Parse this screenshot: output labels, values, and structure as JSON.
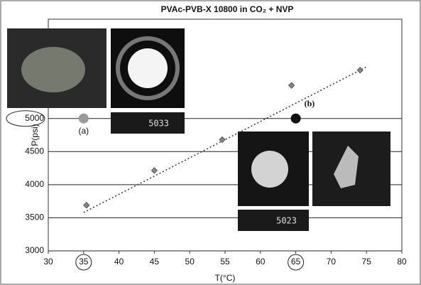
{
  "chart_data": {
    "type": "scatter",
    "title": "PVAc-PVB-X 10800 in CO₂ + NVP",
    "x_label": "T(°C)",
    "y_label": "P(psi)",
    "xlim": [
      30,
      80
    ],
    "xticks": [
      30,
      35,
      40,
      45,
      50,
      55,
      60,
      65,
      70,
      75,
      80
    ],
    "ylim": [
      3000,
      6500
    ],
    "yticks": [
      3000,
      3500,
      4000,
      4500,
      5000
    ],
    "grid": true,
    "x": [
      35.4,
      45,
      54.6,
      64.4,
      74.1
    ],
    "values": [
      3690,
      4215,
      4680,
      5500,
      5730
    ],
    "color": "#888888",
    "trendline": {
      "x": [
        35,
        75
      ],
      "values": [
        3580,
        5780
      ]
    },
    "markers": [
      {
        "x": 35,
        "y": 5000,
        "label": "(a)",
        "color": "#999999"
      },
      {
        "x": 65,
        "y": 5000,
        "label": "(b)",
        "color": "#111111"
      }
    ],
    "photo_labels": [
      "5033",
      "5023"
    ]
  }
}
